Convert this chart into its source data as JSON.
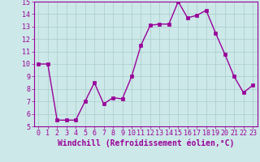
{
  "x": [
    0,
    1,
    2,
    3,
    4,
    5,
    6,
    7,
    8,
    9,
    10,
    11,
    12,
    13,
    14,
    15,
    16,
    17,
    18,
    19,
    20,
    21,
    22,
    23
  ],
  "y": [
    10,
    10,
    5.5,
    5.5,
    5.5,
    7.0,
    8.5,
    6.8,
    7.3,
    7.2,
    9.0,
    11.5,
    13.1,
    13.2,
    13.2,
    15.0,
    13.7,
    13.9,
    14.3,
    12.5,
    10.8,
    9.0,
    7.7,
    8.3
  ],
  "line_color": "#990099",
  "marker": "s",
  "markersize": 2.5,
  "linewidth": 1.0,
  "bg_color": "#cce8e8",
  "grid_color": "#aacccc",
  "xlabel": "Windchill (Refroidissement éolien,°C)",
  "xlim": [
    -0.5,
    23.5
  ],
  "ylim": [
    5,
    15
  ],
  "yticks": [
    5,
    6,
    7,
    8,
    9,
    10,
    11,
    12,
    13,
    14,
    15
  ],
  "xticks": [
    0,
    1,
    2,
    3,
    4,
    5,
    6,
    7,
    8,
    9,
    10,
    11,
    12,
    13,
    14,
    15,
    16,
    17,
    18,
    19,
    20,
    21,
    22,
    23
  ],
  "tick_color": "#990099",
  "label_color": "#990099",
  "tick_fontsize": 6,
  "xlabel_fontsize": 7
}
